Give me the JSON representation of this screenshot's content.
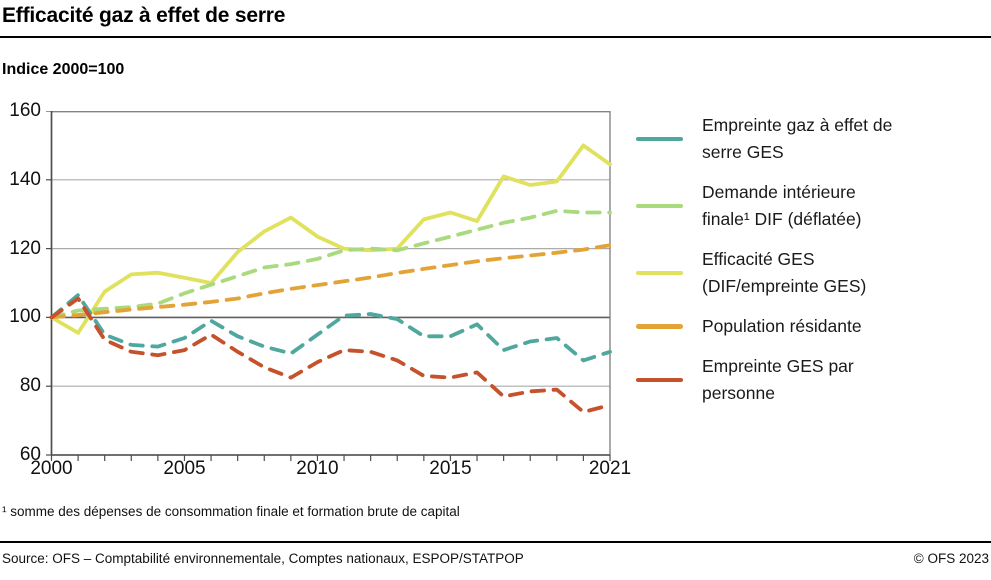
{
  "header": {
    "title": "Efficacité gaz à effet de serre",
    "subtitle": "Indice 2000=100"
  },
  "footnote": "¹ somme des dépenses de consommation finale et formation brute de capital",
  "footer": {
    "source": "Source: OFS – Comptabilité environnementale, Comptes nationaux, ESPOP/STATPOP",
    "copyright": "© OFS 2023"
  },
  "chart_data": {
    "type": "line",
    "title": "Efficacité gaz à effet de serre",
    "subtitle": "Indice 2000=100",
    "xlim": [
      2000,
      2021
    ],
    "ylim": [
      60,
      160
    ],
    "y_ticks": [
      60,
      80,
      100,
      120,
      140,
      160
    ],
    "x_tick_labels": [
      2000,
      2005,
      2010,
      2015,
      2021
    ],
    "baseline_value": 100,
    "grid": "horizontal",
    "legend_position": "right",
    "x": [
      2000,
      2001,
      2002,
      2003,
      2004,
      2005,
      2006,
      2007,
      2008,
      2009,
      2010,
      2011,
      2012,
      2013,
      2014,
      2015,
      2016,
      2017,
      2018,
      2019,
      2020,
      2021
    ],
    "series": [
      {
        "name": "Empreinte gaz à effet de\nserre GES",
        "color": "#4FA79E",
        "dashed": true,
        "values": [
          100,
          106.5,
          95,
          92,
          91.5,
          94,
          99,
          94.5,
          91.5,
          89.5,
          95,
          100.5,
          101,
          99.5,
          94.5,
          94.5,
          98,
          90.5,
          93,
          94,
          87.5,
          90
        ]
      },
      {
        "name": "Demande intérieure\nfinale¹ DIF (déflatée)",
        "color": "#A9DA7D",
        "dashed": true,
        "values": [
          100,
          102,
          102.5,
          103,
          104,
          107,
          109.5,
          112,
          114.5,
          115.5,
          117,
          119.5,
          120,
          119.5,
          121.5,
          123.5,
          125.5,
          127.5,
          129,
          131,
          130.5,
          130.5
        ]
      },
      {
        "name": "Efficacité GES\n(DIF/empreinte GES)",
        "color": "#E0E15C",
        "dashed": false,
        "values": [
          100,
          95.5,
          107.5,
          112.5,
          113,
          111.5,
          110,
          119,
          125,
          129,
          123.5,
          120,
          119.5,
          120,
          128.5,
          130.5,
          128,
          141,
          138.5,
          139.5,
          150,
          144.5
        ]
      },
      {
        "name": "Population résidante",
        "color": "#E3A437",
        "dashed": true,
        "values": [
          100,
          100.7,
          101.5,
          102.3,
          103,
          103.7,
          104.5,
          105.5,
          107,
          108.3,
          109.4,
          110.5,
          111.6,
          112.9,
          114.1,
          115.2,
          116.3,
          117.2,
          118,
          118.8,
          119.7,
          121
        ]
      },
      {
        "name": "Empreinte GES par\npersonne",
        "color": "#C6522B",
        "dashed": true,
        "values": [
          100,
          105.5,
          93.5,
          90,
          89,
          90.5,
          95,
          90,
          85.5,
          82.5,
          87,
          90.5,
          90,
          87.5,
          83,
          82.5,
          84,
          77,
          78.5,
          79,
          72.5,
          74.5
        ]
      }
    ]
  }
}
